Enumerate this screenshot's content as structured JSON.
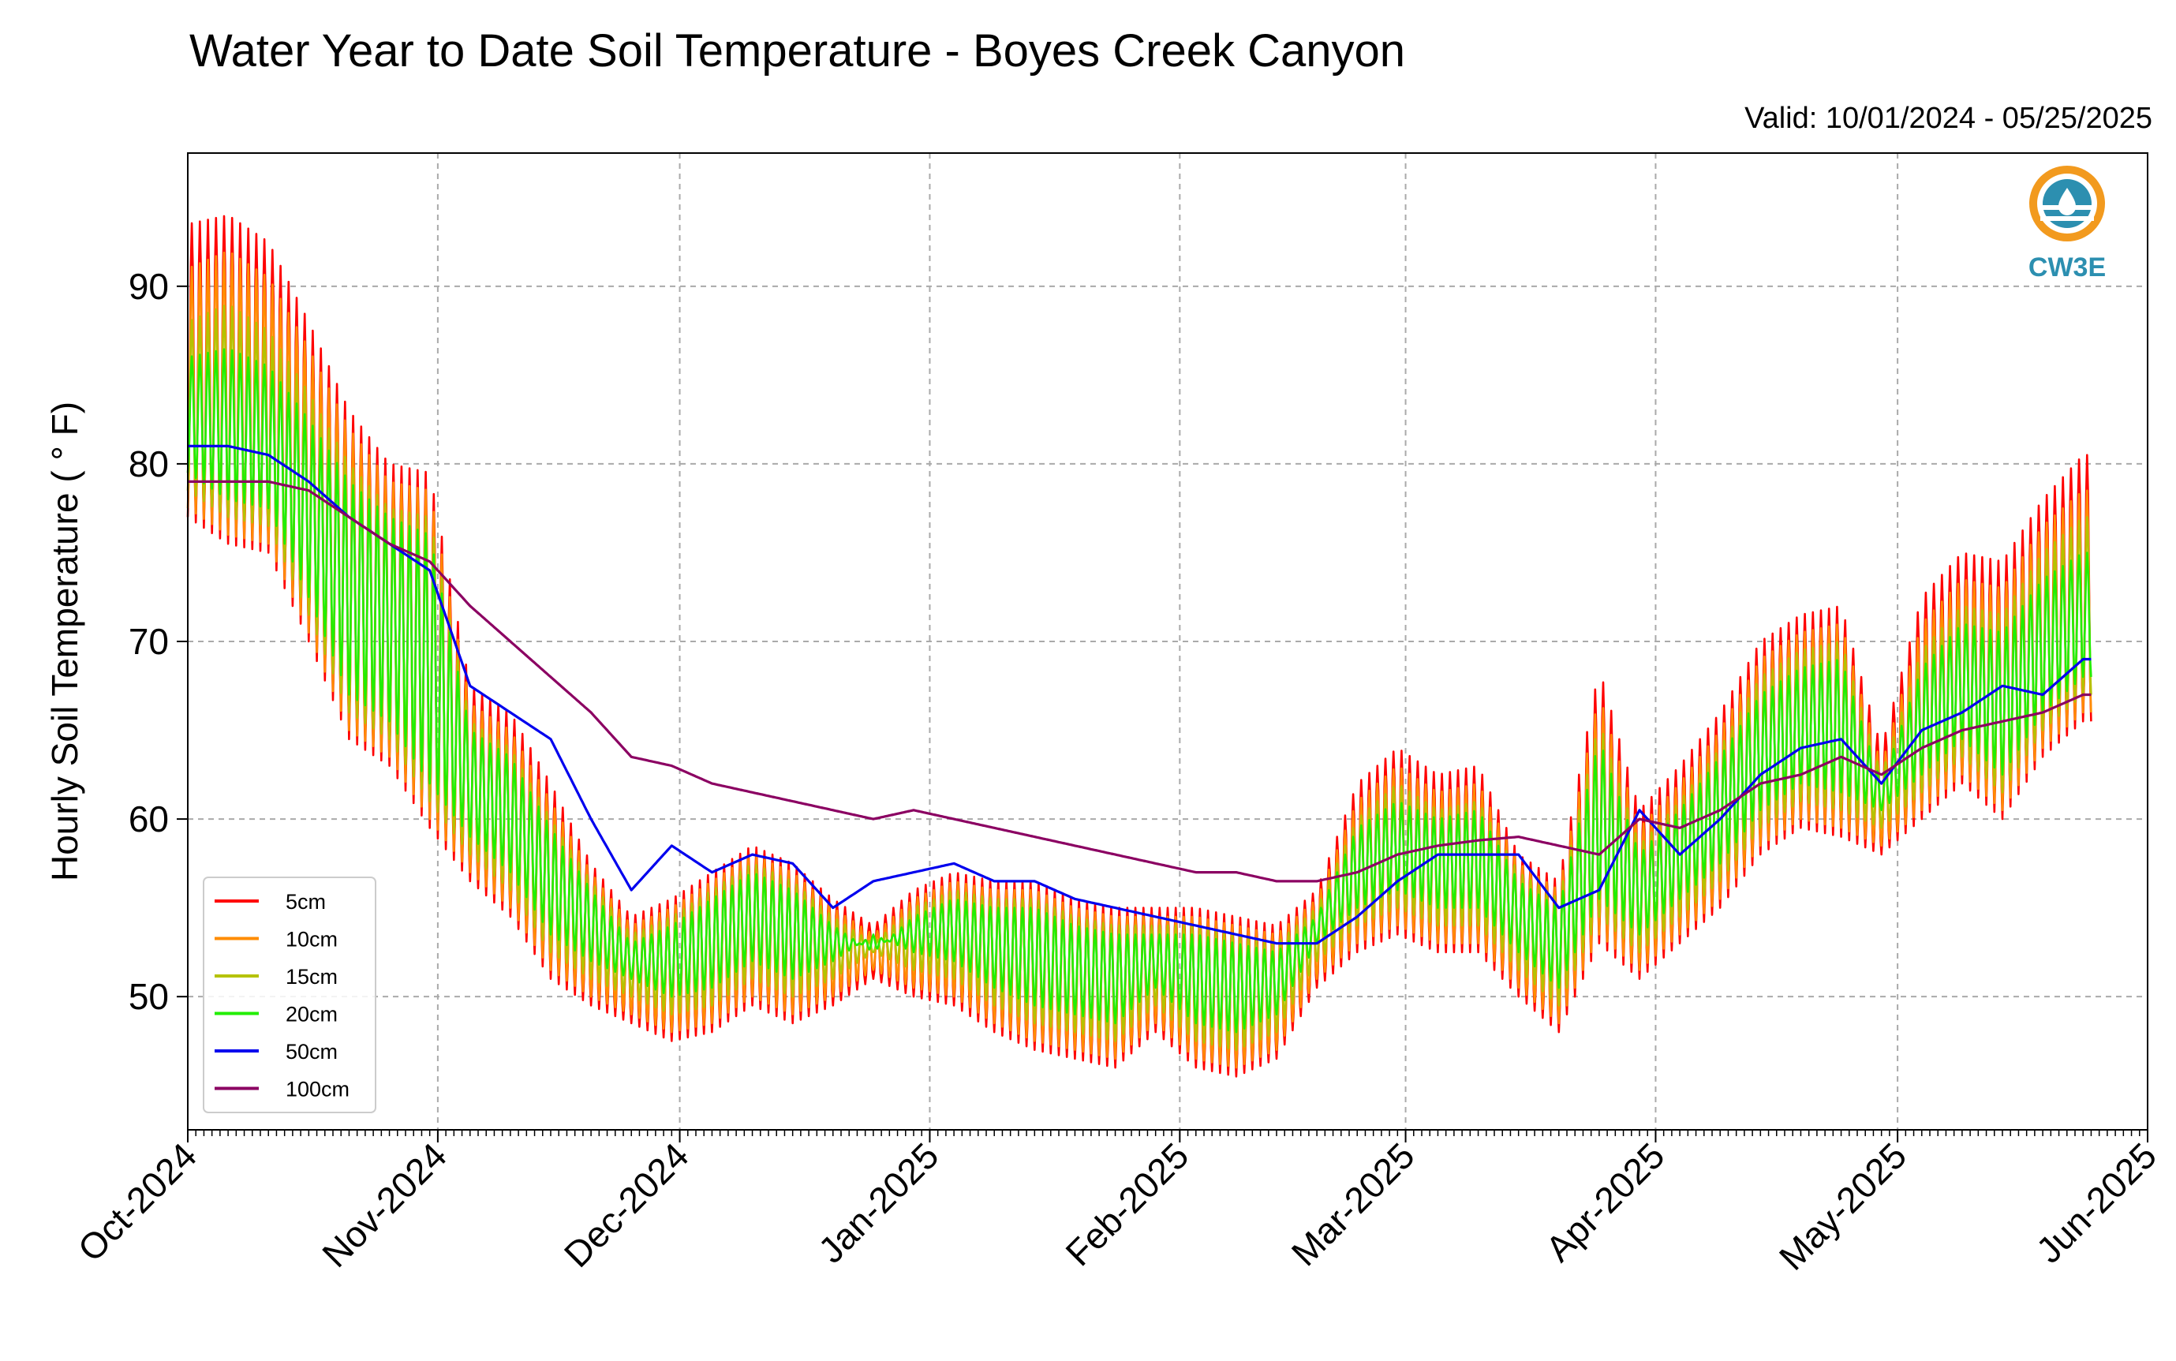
{
  "title": "Water Year to Date Soil Temperature - Boyes Creek Canyon",
  "valid_text": "Valid: 10/01/2024 - 05/25/2025",
  "logo_text": "CW3E",
  "colors": {
    "5cm": "#ff0000",
    "10cm": "#ff8c00",
    "15cm": "#b5c200",
    "20cm": "#22ee00",
    "50cm": "#0000ee",
    "100cm": "#8b0062",
    "logo_orange": "#f29a1e",
    "logo_blue": "#2c8fb0"
  },
  "chart_data": {
    "type": "line",
    "title": "Water Year to Date Soil Temperature - Boyes Creek Canyon",
    "xlabel": "",
    "ylabel": "Hourly Soil Temperature ($^\\circ$F)",
    "ylabel_display": "Hourly Soil Temperature ( ° F)",
    "ylim": [
      42.5,
      97.5
    ],
    "xlim": [
      "2024-10-01",
      "2025-06-01"
    ],
    "grid": true,
    "legend_position": "lower-left",
    "x_ticks": [
      "Oct-2024",
      "Nov-2024",
      "Dec-2024",
      "Jan-2025",
      "Feb-2025",
      "Mar-2025",
      "Apr-2025",
      "May-2025",
      "Jun-2025"
    ],
    "y_ticks": [
      50,
      60,
      70,
      80,
      90
    ],
    "x": [
      "2024-10-01",
      "2024-10-06",
      "2024-10-11",
      "2024-10-16",
      "2024-10-21",
      "2024-10-26",
      "2024-10-31",
      "2024-11-05",
      "2024-11-10",
      "2024-11-15",
      "2024-11-20",
      "2024-11-25",
      "2024-11-30",
      "2024-12-05",
      "2024-12-10",
      "2024-12-15",
      "2024-12-20",
      "2024-12-25",
      "2024-12-30",
      "2025-01-04",
      "2025-01-09",
      "2025-01-14",
      "2025-01-19",
      "2025-01-24",
      "2025-01-29",
      "2025-02-03",
      "2025-02-08",
      "2025-02-13",
      "2025-02-18",
      "2025-02-23",
      "2025-02-28",
      "2025-03-05",
      "2025-03-10",
      "2025-03-15",
      "2025-03-20",
      "2025-03-25",
      "2025-03-30",
      "2025-04-04",
      "2025-04-09",
      "2025-04-14",
      "2025-04-19",
      "2025-04-24",
      "2025-04-29",
      "2025-05-04",
      "2025-05-09",
      "2025-05-14",
      "2025-05-19",
      "2025-05-24"
    ],
    "series": [
      {
        "name": "5cm",
        "daily_max": [
          93.5,
          94.0,
          92.5,
          88.0,
          83.0,
          80.0,
          79.5,
          67.5,
          66.0,
          62.0,
          57.5,
          54.5,
          55.5,
          57.0,
          58.5,
          57.5,
          55.5,
          54.0,
          56.0,
          57.0,
          56.5,
          56.5,
          55.5,
          55.0,
          55.0,
          55.0,
          54.5,
          54.0,
          56.0,
          62.0,
          64.0,
          62.5,
          63.0,
          58.0,
          56.5,
          68.5,
          60.5,
          63.0,
          66.0,
          70.0,
          71.5,
          72.0,
          64.0,
          72.5,
          75.0,
          74.5,
          78.0,
          80.5
        ],
        "daily_min": [
          77.0,
          75.5,
          75.0,
          70.0,
          64.5,
          63.0,
          59.5,
          56.5,
          54.5,
          51.0,
          49.5,
          48.5,
          47.5,
          48.0,
          49.5,
          48.5,
          49.5,
          51.0,
          50.0,
          49.5,
          48.0,
          47.0,
          46.5,
          46.0,
          48.0,
          46.0,
          45.5,
          46.5,
          50.5,
          52.5,
          53.5,
          52.5,
          52.5,
          50.0,
          48.0,
          53.0,
          51.0,
          53.0,
          55.0,
          58.0,
          59.5,
          59.0,
          58.0,
          60.0,
          62.0,
          60.0,
          63.5,
          65.5
        ]
      },
      {
        "name": "10cm",
        "daily_max": [
          91.0,
          92.0,
          90.5,
          86.5,
          82.0,
          79.0,
          78.5,
          66.5,
          65.0,
          61.0,
          57.0,
          54.0,
          55.0,
          56.5,
          58.0,
          57.0,
          55.0,
          53.5,
          55.5,
          56.5,
          56.0,
          56.0,
          55.0,
          54.5,
          54.5,
          54.5,
          54.0,
          53.5,
          55.5,
          61.0,
          63.0,
          61.5,
          62.0,
          57.5,
          56.0,
          67.0,
          59.5,
          62.0,
          65.0,
          69.0,
          70.5,
          71.0,
          63.0,
          71.0,
          73.5,
          73.0,
          76.5,
          78.5
        ],
        "daily_min": [
          77.5,
          76.0,
          75.5,
          70.5,
          65.0,
          63.5,
          60.0,
          57.0,
          55.0,
          51.5,
          50.0,
          49.0,
          48.0,
          48.5,
          50.0,
          49.0,
          50.0,
          51.5,
          50.5,
          50.0,
          48.5,
          47.5,
          47.0,
          46.5,
          48.5,
          46.5,
          46.0,
          47.0,
          51.0,
          53.0,
          54.0,
          53.0,
          53.0,
          50.5,
          48.5,
          53.5,
          51.5,
          53.5,
          55.5,
          58.5,
          60.0,
          59.5,
          58.5,
          60.5,
          62.5,
          60.5,
          64.0,
          66.0
        ]
      },
      {
        "name": "15cm",
        "daily_max": [
          88.0,
          89.0,
          87.5,
          84.0,
          80.0,
          77.5,
          77.0,
          65.5,
          64.0,
          60.0,
          56.5,
          53.5,
          54.5,
          56.0,
          57.5,
          56.5,
          54.5,
          53.0,
          55.0,
          56.0,
          55.5,
          55.5,
          54.5,
          54.0,
          54.0,
          54.0,
          53.5,
          53.0,
          55.0,
          60.0,
          62.0,
          60.5,
          61.0,
          57.0,
          55.5,
          65.5,
          58.5,
          61.0,
          64.0,
          68.0,
          69.5,
          70.0,
          62.5,
          69.5,
          72.0,
          71.5,
          75.0,
          77.0
        ],
        "daily_min": [
          78.5,
          77.0,
          76.5,
          71.5,
          66.0,
          64.5,
          61.0,
          58.0,
          56.0,
          52.5,
          51.0,
          50.0,
          49.0,
          49.5,
          51.0,
          50.0,
          51.0,
          52.5,
          51.5,
          51.0,
          49.5,
          48.5,
          48.0,
          47.5,
          49.5,
          47.5,
          47.0,
          48.0,
          52.0,
          54.0,
          55.0,
          54.0,
          54.0,
          51.5,
          49.5,
          54.5,
          52.5,
          54.5,
          56.5,
          59.5,
          61.0,
          60.5,
          59.5,
          61.5,
          63.5,
          61.5,
          65.0,
          67.0
        ]
      },
      {
        "name": "20cm",
        "daily_max": [
          86.0,
          86.5,
          85.5,
          82.5,
          79.0,
          77.0,
          76.0,
          65.0,
          63.5,
          59.5,
          56.0,
          53.0,
          54.0,
          55.5,
          57.0,
          56.0,
          54.0,
          52.5,
          54.5,
          55.5,
          55.0,
          55.0,
          54.0,
          53.5,
          53.5,
          53.5,
          53.0,
          52.5,
          54.5,
          59.5,
          61.0,
          60.0,
          60.5,
          56.5,
          55.0,
          64.5,
          58.0,
          60.5,
          63.5,
          67.0,
          68.5,
          69.0,
          62.0,
          68.5,
          71.0,
          70.5,
          73.5,
          75.0
        ],
        "daily_min": [
          79.5,
          78.0,
          77.5,
          72.5,
          67.0,
          65.5,
          62.0,
          59.0,
          57.0,
          53.5,
          52.0,
          51.0,
          50.0,
          50.5,
          52.0,
          51.0,
          52.0,
          53.5,
          52.5,
          52.0,
          50.5,
          49.5,
          49.0,
          48.5,
          50.5,
          48.5,
          48.0,
          49.0,
          53.0,
          55.0,
          56.0,
          55.0,
          55.0,
          52.5,
          50.5,
          55.5,
          53.5,
          55.5,
          57.5,
          60.5,
          62.0,
          61.5,
          60.5,
          62.5,
          64.5,
          62.5,
          66.0,
          68.0
        ]
      },
      {
        "name": "50cm",
        "values": [
          81.0,
          81.0,
          80.5,
          79.0,
          77.0,
          75.5,
          74.0,
          67.5,
          66.0,
          64.5,
          60.0,
          56.0,
          58.5,
          57.0,
          58.0,
          57.5,
          55.0,
          56.5,
          57.0,
          57.5,
          56.5,
          56.5,
          55.5,
          55.0,
          54.5,
          54.0,
          53.5,
          53.0,
          53.0,
          54.5,
          56.5,
          58.0,
          58.0,
          58.0,
          55.0,
          56.0,
          60.5,
          58.0,
          60.0,
          62.5,
          64.0,
          64.5,
          62.0,
          65.0,
          66.0,
          67.5,
          67.0,
          69.0
        ]
      },
      {
        "name": "100cm",
        "values": [
          79.0,
          79.0,
          79.0,
          78.5,
          77.0,
          75.5,
          74.5,
          72.0,
          70.0,
          68.0,
          66.0,
          63.5,
          63.0,
          62.0,
          61.5,
          61.0,
          60.5,
          60.0,
          60.5,
          60.0,
          59.5,
          59.0,
          58.5,
          58.0,
          57.5,
          57.0,
          57.0,
          56.5,
          56.5,
          57.0,
          58.0,
          58.5,
          58.8,
          59.0,
          58.5,
          58.0,
          60.0,
          59.5,
          60.5,
          62.0,
          62.5,
          63.5,
          62.5,
          64.0,
          65.0,
          65.5,
          66.0,
          67.0
        ]
      }
    ]
  }
}
